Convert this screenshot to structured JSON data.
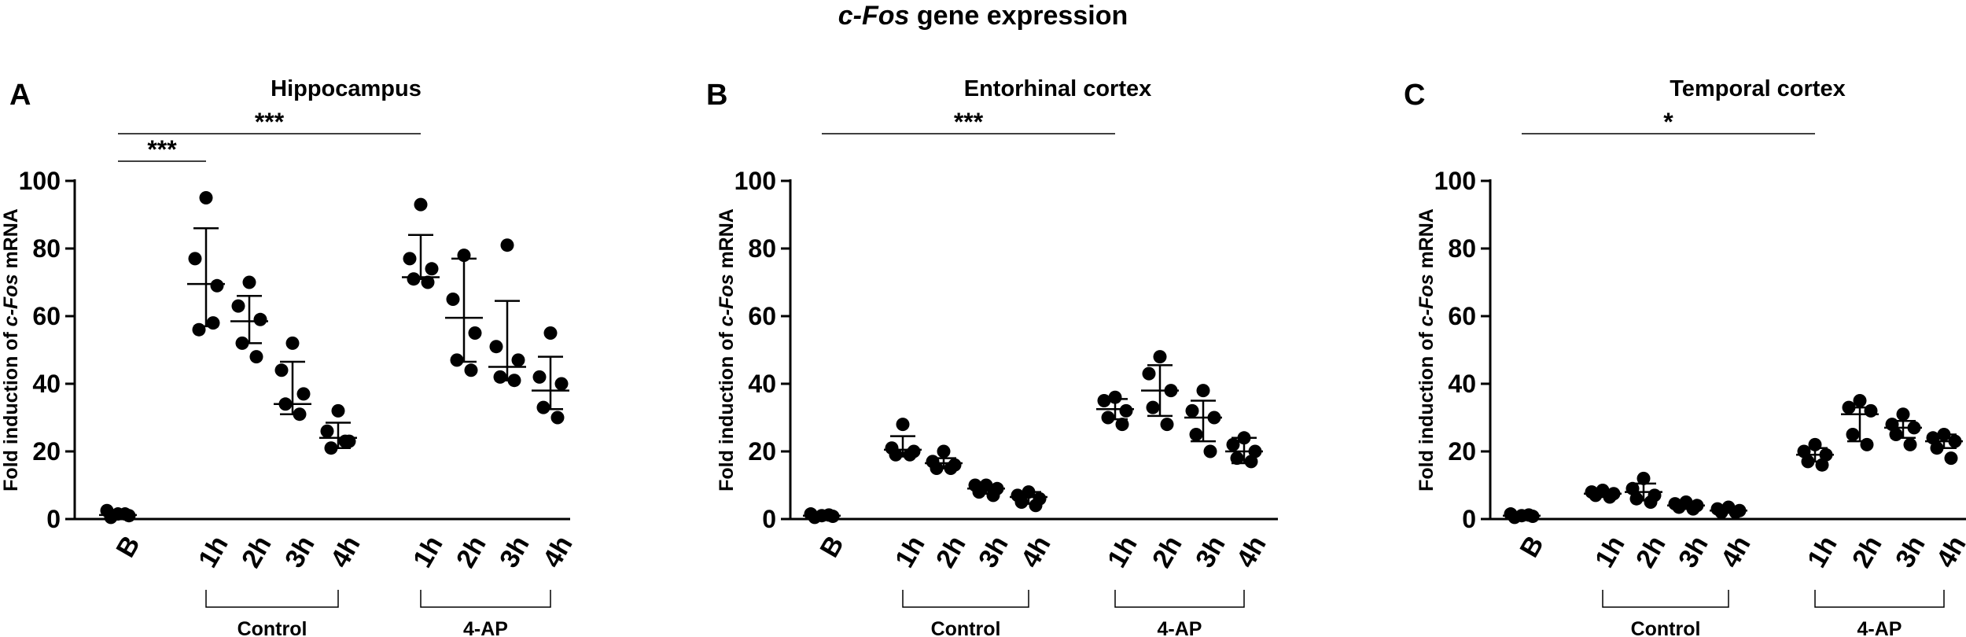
{
  "figure": {
    "title_gene": "c-Fos",
    "title_rest": " gene expression"
  },
  "chart_data": [
    {
      "type": "scatter",
      "panel_letter": "A",
      "title": "Hippocampus",
      "ylabel": "Fold induction of c-Fos mRNA",
      "ylim": [
        0,
        100
      ],
      "yticks": [
        0,
        20,
        40,
        60,
        80,
        100
      ],
      "categories": [
        "B",
        "1h",
        "2h",
        "3h",
        "4h",
        "1h",
        "2h",
        "3h",
        "4h"
      ],
      "groups": [
        {
          "label": "Control",
          "categories": [
            "1h",
            "2h",
            "3h",
            "4h"
          ],
          "start_index": 1,
          "end_index": 4
        },
        {
          "label": "4-AP",
          "categories": [
            "1h",
            "2h",
            "3h",
            "4h"
          ],
          "start_index": 5,
          "end_index": 8
        }
      ],
      "points": [
        [
          1.5,
          2.5,
          1.0,
          0.5,
          1.5
        ],
        [
          95,
          77,
          69,
          56,
          58
        ],
        [
          70,
          63,
          59,
          52,
          48
        ],
        [
          52,
          44,
          37,
          34,
          31
        ],
        [
          32,
          26,
          23,
          21,
          23
        ],
        [
          93,
          77,
          74,
          71,
          70
        ],
        [
          78,
          65,
          55,
          47,
          44
        ],
        [
          81,
          51,
          47,
          42,
          41
        ],
        [
          55,
          42,
          40,
          33,
          30
        ]
      ],
      "mean": [
        1.2,
        69.5,
        58.5,
        34,
        24,
        71.5,
        59.5,
        45,
        38
      ],
      "sd_upper": [
        2.5,
        86,
        66,
        46.5,
        28.5,
        84,
        77,
        64.5,
        48
      ],
      "sd_lower": [
        0.2,
        57,
        52,
        31,
        21,
        71,
        46.5,
        41,
        32.5
      ],
      "significance": [
        {
          "from_index": 0,
          "to_index": 1,
          "label": "***",
          "level": 2
        },
        {
          "from_index": 0,
          "to_index": 5,
          "label": "***",
          "level": 1
        }
      ]
    },
    {
      "type": "scatter",
      "panel_letter": "B",
      "title": "Entorhinal cortex",
      "ylabel": "Fold induction of c-Fos mRNA",
      "ylim": [
        0,
        100
      ],
      "yticks": [
        0,
        20,
        40,
        60,
        80,
        100
      ],
      "categories": [
        "B",
        "1h",
        "2h",
        "3h",
        "4h",
        "1h",
        "2h",
        "3h",
        "4h"
      ],
      "groups": [
        {
          "label": "Control",
          "categories": [
            "1h",
            "2h",
            "3h",
            "4h"
          ],
          "start_index": 1,
          "end_index": 4
        },
        {
          "label": "4-AP",
          "categories": [
            "1h",
            "2h",
            "3h",
            "4h"
          ],
          "start_index": 5,
          "end_index": 8
        }
      ],
      "points": [
        [
          1.0,
          1.5,
          0.8,
          0.5,
          1.2
        ],
        [
          28,
          21,
          20,
          19,
          19
        ],
        [
          20,
          17,
          16,
          15,
          15
        ],
        [
          10,
          10,
          9,
          8,
          7
        ],
        [
          8,
          7,
          6,
          5,
          4
        ],
        [
          36,
          35,
          32,
          30,
          28
        ],
        [
          48,
          43,
          38,
          33,
          28
        ],
        [
          38,
          32,
          30,
          25,
          20
        ],
        [
          24,
          22,
          20,
          18,
          17
        ]
      ],
      "mean": [
        1,
        20.5,
        16.5,
        9,
        6.5,
        32.5,
        38,
        30,
        20
      ],
      "sd_upper": [
        1.5,
        24.5,
        18,
        10,
        8,
        35.5,
        45.5,
        35,
        24
      ],
      "sd_lower": [
        0.5,
        18.5,
        15,
        7.5,
        4.5,
        29.5,
        30.5,
        23,
        16.5
      ],
      "significance": [
        {
          "from_index": 0,
          "to_index": 5,
          "label": "***",
          "level": 1
        }
      ]
    },
    {
      "type": "scatter",
      "panel_letter": "C",
      "title": "Temporal cortex",
      "ylabel": "Fold induction of c-Fos mRNA",
      "ylim": [
        0,
        100
      ],
      "yticks": [
        0,
        20,
        40,
        60,
        80,
        100
      ],
      "categories": [
        "B",
        "1h",
        "2h",
        "3h",
        "4h",
        "1h",
        "2h",
        "3h",
        "4h"
      ],
      "groups": [
        {
          "label": "Control",
          "categories": [
            "1h",
            "2h",
            "3h",
            "4h"
          ],
          "start_index": 1,
          "end_index": 4
        },
        {
          "label": "4-AP",
          "categories": [
            "1h",
            "2h",
            "3h",
            "4h"
          ],
          "start_index": 5,
          "end_index": 8
        }
      ],
      "points": [
        [
          1.0,
          1.5,
          0.8,
          0.5,
          1.2
        ],
        [
          8.5,
          8,
          7.5,
          7,
          6.5
        ],
        [
          12,
          9,
          7,
          6,
          5
        ],
        [
          5,
          4.5,
          4,
          3.5,
          3
        ],
        [
          3.5,
          3,
          2.5,
          2,
          2
        ],
        [
          22,
          20,
          19,
          17,
          16
        ],
        [
          35,
          33,
          32,
          25,
          22
        ],
        [
          31,
          28,
          27,
          25,
          22
        ],
        [
          25,
          24,
          23,
          21,
          18
        ]
      ],
      "mean": [
        1,
        7.5,
        8,
        4,
        2.5,
        19,
        31,
        27,
        23
      ],
      "sd_upper": [
        1.5,
        8.5,
        10.5,
        5,
        3,
        21,
        33,
        29,
        25
      ],
      "sd_lower": [
        0.5,
        6.5,
        5.5,
        3,
        2,
        17,
        23,
        24,
        21
      ],
      "significance": [
        {
          "from_index": 0,
          "to_index": 5,
          "label": "*",
          "level": 1
        }
      ]
    }
  ]
}
